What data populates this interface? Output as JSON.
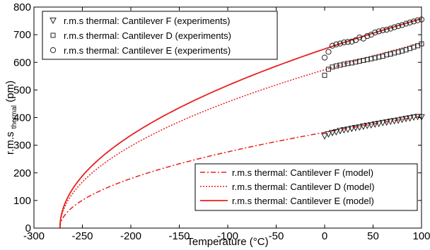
{
  "chart_data": {
    "type": "line",
    "xlabel": "Temperature (°C)",
    "ylabel": {
      "main": "r.m.s",
      "sub": "thermal",
      "unit": "(pm)"
    },
    "xlim": [
      -300,
      100
    ],
    "ylim": [
      0,
      800
    ],
    "xticks": [
      "-300",
      "-250",
      "-200",
      "-150",
      "-100",
      "-50",
      "0",
      "50",
      "100"
    ],
    "yticks": [
      "0",
      "100",
      "200",
      "300",
      "400",
      "500",
      "600",
      "700",
      "800"
    ],
    "grid": false,
    "colors": {
      "model": "#e8201e",
      "marker": "#222222"
    },
    "legend_experiments": {
      "placement": "top-left",
      "items": [
        {
          "label": "r.m.s thermal: Cantilever F (experiments)",
          "marker": "triangle-down"
        },
        {
          "label": "r.m.s thermal: Cantilever D (experiments)",
          "marker": "square"
        },
        {
          "label": "r.m.s thermal: Cantilever E (experiments)",
          "marker": "circle"
        }
      ]
    },
    "legend_models": {
      "placement": "bottom-right",
      "items": [
        {
          "label": "r.m.s thermal: Cantilever F (model)",
          "dash": "dashdot"
        },
        {
          "label": "r.m.s thermal: Cantilever D (model)",
          "dash": "dotted"
        },
        {
          "label": "r.m.s thermal: Cantilever E (model)",
          "dash": "solid"
        }
      ]
    },
    "model_series": [
      {
        "cantilever": "F",
        "style": "dashdot",
        "value_at_100C": 405,
        "zero_at": -273.15
      },
      {
        "cantilever": "D",
        "style": "dotted",
        "value_at_100C": 670,
        "zero_at": -273.15
      },
      {
        "cantilever": "E",
        "style": "solid",
        "value_at_100C": 758,
        "zero_at": -273.15
      }
    ],
    "experiment_series": [
      {
        "cantilever": "F",
        "marker": "triangle-down",
        "x": [
          0,
          4,
          8,
          12,
          16,
          20,
          24,
          28,
          32,
          36,
          40,
          44,
          48,
          52,
          56,
          60,
          64,
          68,
          72,
          76,
          80,
          84,
          88,
          92,
          96,
          100
        ],
        "y": [
          333,
          340,
          345,
          348,
          352,
          355,
          357,
          360,
          363,
          365,
          368,
          371,
          373,
          376,
          378,
          381,
          383,
          386,
          388,
          390,
          393,
          396,
          398,
          401,
          403,
          402
        ]
      },
      {
        "cantilever": "D",
        "marker": "square",
        "x": [
          0,
          4,
          8,
          12,
          16,
          20,
          24,
          28,
          32,
          36,
          40,
          44,
          48,
          52,
          56,
          60,
          64,
          68,
          72,
          76,
          80,
          84,
          88,
          92,
          96,
          100
        ],
        "y": [
          553,
          575,
          583,
          587,
          590,
          593,
          596,
          598,
          601,
          604,
          607,
          610,
          613,
          616,
          619,
          622,
          627,
          630,
          634,
          637,
          641,
          645,
          650,
          655,
          660,
          667
        ]
      },
      {
        "cantilever": "E",
        "marker": "circle",
        "x": [
          0,
          4,
          8,
          12,
          16,
          20,
          24,
          28,
          32,
          36,
          40,
          44,
          48,
          52,
          56,
          60,
          64,
          68,
          72,
          76,
          80,
          84,
          88,
          92,
          96,
          100
        ],
        "y": [
          617,
          638,
          660,
          665,
          668,
          672,
          674,
          675,
          680,
          690,
          686,
          695,
          700,
          708,
          712,
          716,
          718,
          722,
          727,
          731,
          735,
          740,
          744,
          748,
          752,
          755
        ]
      }
    ]
  }
}
